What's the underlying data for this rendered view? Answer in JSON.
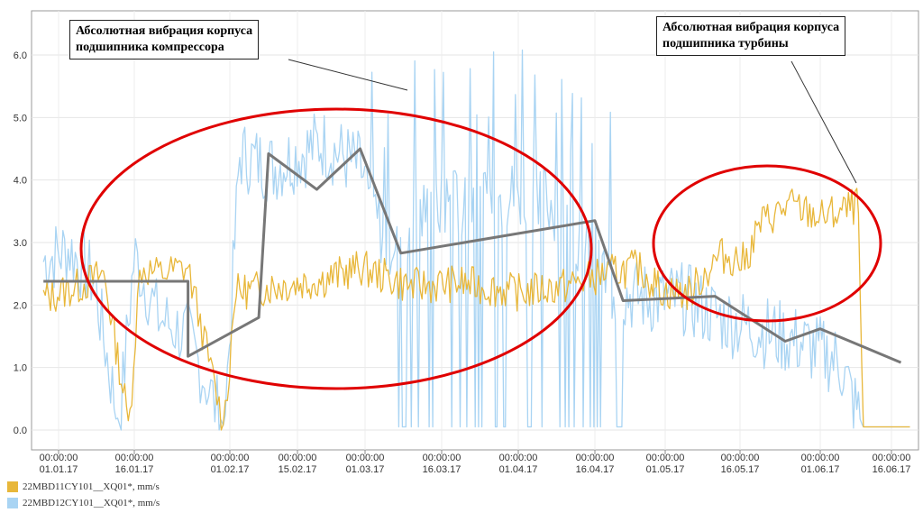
{
  "chart_data": {
    "type": "line",
    "ylim": [
      0,
      6.5
    ],
    "y_ticks": [
      "0.0",
      "1.0",
      "2.0",
      "3.0",
      "4.0",
      "5.0",
      "6.0"
    ],
    "x_ticks": [
      {
        "time": "00:00:00",
        "date": "01.01.17"
      },
      {
        "time": "00:00:00",
        "date": "16.01.17"
      },
      {
        "time": "00:00:00",
        "date": "01.02.17"
      },
      {
        "time": "00:00:00",
        "date": "15.02.17"
      },
      {
        "time": "00:00:00",
        "date": "01.03.17"
      },
      {
        "time": "00:00:00",
        "date": "16.03.17"
      },
      {
        "time": "00:00:00",
        "date": "01.04.17"
      },
      {
        "time": "00:00:00",
        "date": "16.04.17"
      },
      {
        "time": "00:00:00",
        "date": "01.05.17"
      },
      {
        "time": "00:00:00",
        "date": "16.05.17"
      },
      {
        "time": "00:00:00",
        "date": "01.06.17"
      },
      {
        "time": "00:00:00",
        "date": "16.06.17"
      }
    ],
    "grid": true,
    "legend_position": "bottom-left",
    "series": [
      {
        "name": "22MBD11CY101__XQ01*, mm/s",
        "color": "#e8b73a",
        "x": [
          "2016-12-29",
          "2017-01-05",
          "2017-01-10",
          "2017-01-15",
          "2017-01-17",
          "2017-01-20",
          "2017-01-25",
          "2017-01-31",
          "2017-02-02",
          "2017-02-10",
          "2017-02-20",
          "2017-02-28",
          "2017-03-10",
          "2017-03-20",
          "2017-04-01",
          "2017-04-10",
          "2017-04-18",
          "2017-04-25",
          "2017-05-01",
          "2017-05-06",
          "2017-05-12",
          "2017-05-17",
          "2017-05-20",
          "2017-05-26",
          "2017-06-01",
          "2017-06-06",
          "2017-06-09",
          "2017-06-10",
          "2017-06-20"
        ],
        "y": [
          2.1,
          2.3,
          2.5,
          0.05,
          2.6,
          2.5,
          2.6,
          0.05,
          2.2,
          2.3,
          2.4,
          2.6,
          2.3,
          2.35,
          2.2,
          2.3,
          2.5,
          2.6,
          2.2,
          2.2,
          2.8,
          2.7,
          3.3,
          3.6,
          3.4,
          3.5,
          3.6,
          0.05,
          0.05
        ]
      },
      {
        "name": "22MBD12CY101__XQ01*, mm/s",
        "color": "#a9d4f3",
        "x": [
          "2016-12-29",
          "2017-01-03",
          "2017-01-08",
          "2017-01-13",
          "2017-01-16",
          "2017-01-20",
          "2017-01-25",
          "2017-01-31",
          "2017-02-03",
          "2017-02-10",
          "2017-02-20",
          "2017-02-28",
          "2017-03-05",
          "2017-03-15",
          "2017-03-25",
          "2017-04-05",
          "2017-04-15",
          "2017-04-20",
          "2017-04-28",
          "2017-05-05",
          "2017-05-12",
          "2017-05-20",
          "2017-05-28",
          "2017-06-05",
          "2017-06-10",
          "2017-06-20"
        ],
        "y": [
          2.7,
          2.9,
          2.4,
          0.05,
          2.8,
          1.8,
          1.5,
          0.05,
          4.4,
          4.2,
          4.6,
          4.2,
          3.0,
          3.6,
          3.7,
          3.8,
          2.9,
          2.2,
          2.1,
          2.1,
          1.8,
          1.6,
          1.4,
          1.1,
          0.05,
          0.05
        ]
      },
      {
        "name": "",
        "color": "#777777",
        "x": [
          "2016-12-29",
          "2017-01-25",
          "2017-01-25",
          "2017-02-07",
          "2017-02-09",
          "2017-02-19",
          "2017-02-28",
          "2017-03-08",
          "2017-04-16",
          "2017-04-22",
          "2017-05-11",
          "2017-05-25",
          "2017-06-01",
          "2017-06-18"
        ],
        "y": [
          2.38,
          2.38,
          1.18,
          1.8,
          4.42,
          3.85,
          4.5,
          2.83,
          3.35,
          2.07,
          2.14,
          1.42,
          1.62,
          1.08
        ]
      }
    ],
    "annotations": [
      {
        "lines": [
          "Абсолютная вибрация корпуса",
          "подшипника компрессора"
        ]
      },
      {
        "lines": [
          "Абсолютная вибрация корпуса",
          "подшипника турбины"
        ]
      }
    ],
    "highlight_color": "#e00000"
  }
}
